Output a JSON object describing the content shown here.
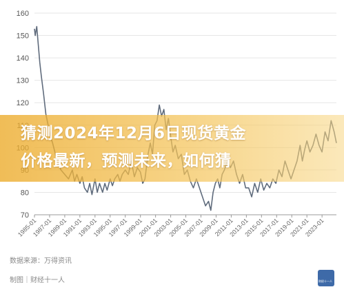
{
  "chart_data": {
    "type": "line",
    "y_ticks": [
      "160",
      "150",
      "140",
      "130",
      "120",
      "110",
      "100",
      "90",
      "80",
      "70"
    ],
    "ylim": [
      70,
      160
    ],
    "x_ticks": [
      "1985-01",
      "1987-01",
      "1989-01",
      "1991-01",
      "1993-01",
      "1995-01",
      "1997-01",
      "1999-01",
      "2001-01",
      "2003-01",
      "2005-01",
      "2007-01",
      "2009-01",
      "2011-01",
      "2013-01",
      "2015-01",
      "2017-01",
      "2019-01",
      "2021-01",
      "2023-01"
    ],
    "xlim": [
      1985.0,
      2024.9
    ],
    "grid": "horizontal",
    "series": [
      {
        "color": "#5f6b7c",
        "x": [
          1985.0,
          1985.1,
          1985.3,
          1985.5,
          1985.7,
          1985.9,
          1986.2,
          1986.5,
          1986.8,
          1987.1,
          1987.4,
          1987.7,
          1988.0,
          1988.5,
          1989.0,
          1989.5,
          1990.0,
          1990.3,
          1990.6,
          1991.0,
          1991.3,
          1991.6,
          1992.0,
          1992.3,
          1992.6,
          1993.0,
          1993.3,
          1993.6,
          1994.0,
          1994.3,
          1994.6,
          1995.0,
          1995.3,
          1995.6,
          1996.0,
          1996.3,
          1996.6,
          1997.0,
          1997.4,
          1997.8,
          1998.2,
          1998.6,
          1999.0,
          1999.3,
          1999.6,
          2000.0,
          2000.3,
          2000.6,
          2000.9,
          2001.2,
          2001.5,
          2001.8,
          2002.1,
          2002.4,
          2002.7,
          2003.0,
          2003.3,
          2003.6,
          2004.0,
          2004.4,
          2004.8,
          2005.2,
          2005.6,
          2006.0,
          2006.4,
          2006.8,
          2007.2,
          2007.6,
          2008.0,
          2008.3,
          2008.6,
          2008.9,
          2009.2,
          2009.5,
          2009.8,
          2010.1,
          2010.5,
          2010.9,
          2011.3,
          2011.7,
          2012.1,
          2012.5,
          2012.9,
          2013.3,
          2013.7,
          2014.1,
          2014.5,
          2014.9,
          2015.3,
          2015.7,
          2016.1,
          2016.5,
          2016.9,
          2017.3,
          2017.7,
          2018.1,
          2018.5,
          2018.9,
          2019.3,
          2019.7,
          2020.1,
          2020.4,
          2020.7,
          2021.0,
          2021.4,
          2021.8,
          2022.2,
          2022.6,
          2023.0,
          2023.4,
          2023.8,
          2024.2,
          2024.6,
          2024.9
        ],
        "values": [
          153,
          150,
          154,
          146,
          138,
          132,
          124,
          115,
          110,
          105,
          102,
          98,
          94,
          90,
          88,
          86,
          90,
          85,
          88,
          84,
          87,
          82,
          80,
          84,
          79,
          86,
          80,
          84,
          80,
          84,
          81,
          86,
          83,
          86,
          88,
          85,
          88,
          90,
          88,
          94,
          87,
          91,
          89,
          84,
          86,
          97,
          102,
          97,
          110,
          112,
          119,
          114,
          117,
          108,
          113,
          105,
          98,
          101,
          95,
          97,
          88,
          90,
          85,
          82,
          86,
          82,
          78,
          74,
          76,
          72,
          80,
          84,
          86,
          82,
          88,
          90,
          94,
          91,
          94,
          88,
          84,
          88,
          82,
          82,
          78,
          84,
          80,
          86,
          81,
          84,
          82,
          86,
          84,
          90,
          87,
          94,
          90,
          86,
          90,
          94,
          101,
          94,
          99,
          103,
          98,
          101,
          106,
          101,
          98,
          107,
          103,
          112,
          107,
          102
        ]
      }
    ]
  },
  "headline": {
    "line1": "猜测2024年12月6日现货黄金",
    "line2": "价格最新，预测未来，如何猜"
  },
  "source_text": "数据来源：万得资讯",
  "author_text": "制图｜财经十一人",
  "logo_text": "财经十一人"
}
